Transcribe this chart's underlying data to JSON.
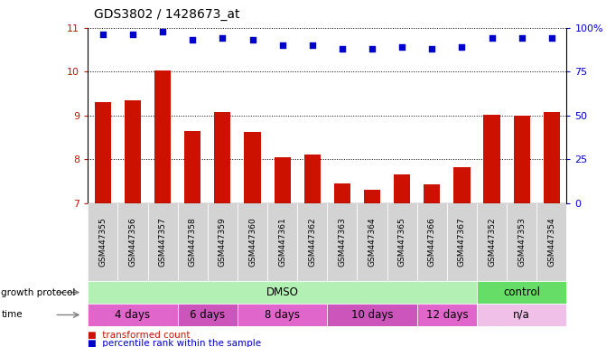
{
  "title": "GDS3802 / 1428673_at",
  "samples": [
    "GSM447355",
    "GSM447356",
    "GSM447357",
    "GSM447358",
    "GSM447359",
    "GSM447360",
    "GSM447361",
    "GSM447362",
    "GSM447363",
    "GSM447364",
    "GSM447365",
    "GSM447366",
    "GSM447367",
    "GSM447352",
    "GSM447353",
    "GSM447354"
  ],
  "bar_values": [
    9.3,
    9.35,
    10.02,
    8.65,
    9.08,
    8.62,
    8.05,
    8.1,
    7.45,
    7.3,
    7.65,
    7.42,
    7.82,
    9.02,
    9.0,
    9.08
  ],
  "dot_values": [
    96,
    96,
    98,
    93,
    94,
    93,
    90,
    90,
    88,
    88,
    89,
    88,
    89,
    94,
    94,
    94
  ],
  "ylim_left": [
    7,
    11
  ],
  "ylim_right": [
    0,
    100
  ],
  "yticks_left": [
    7,
    8,
    9,
    10,
    11
  ],
  "yticks_right": [
    0,
    25,
    50,
    75,
    100
  ],
  "bar_color": "#cc1100",
  "dot_color": "#0000cc",
  "tick_bg": "#d3d3d3",
  "growth_protocol_label": "growth protocol",
  "time_label": "time",
  "protocol_groups": [
    {
      "label": "DMSO",
      "start": 0,
      "end": 12,
      "color": "#b3f0b3"
    },
    {
      "label": "control",
      "start": 13,
      "end": 15,
      "color": "#66dd66"
    }
  ],
  "time_groups": [
    {
      "label": "4 days",
      "start": 0,
      "end": 2,
      "color": "#e066cc"
    },
    {
      "label": "6 days",
      "start": 3,
      "end": 4,
      "color": "#cc55bb"
    },
    {
      "label": "8 days",
      "start": 5,
      "end": 7,
      "color": "#e066cc"
    },
    {
      "label": "10 days",
      "start": 8,
      "end": 10,
      "color": "#cc55bb"
    },
    {
      "label": "12 days",
      "start": 11,
      "end": 12,
      "color": "#e066cc"
    },
    {
      "label": "n/a",
      "start": 13,
      "end": 15,
      "color": "#f0c0e8"
    }
  ],
  "legend_bar_label": "transformed count",
  "legend_dot_label": "percentile rank within the sample",
  "n_samples": 16,
  "bar_width": 0.55
}
